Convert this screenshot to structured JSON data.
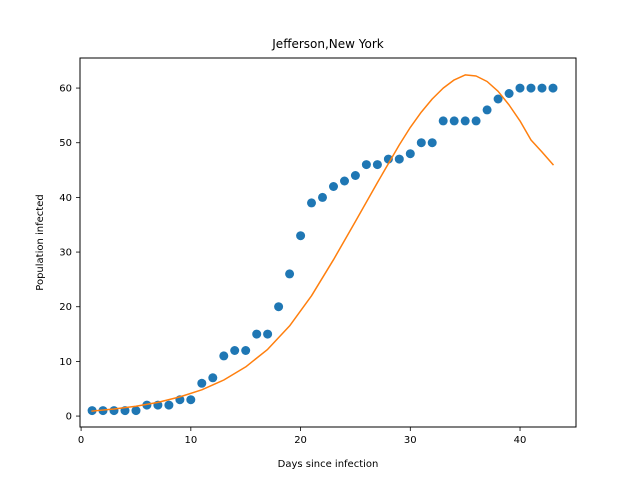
{
  "chart_data": {
    "type": "scatter",
    "title": "Jefferson,New York",
    "xlabel": "Days since infection",
    "ylabel": "Population infected",
    "xlim": [
      -0.1,
      45.1
    ],
    "ylim": [
      -2,
      65.5
    ],
    "xticks": [
      0,
      10,
      20,
      30,
      40
    ],
    "yticks": [
      0,
      10,
      20,
      30,
      40,
      50,
      60
    ],
    "grid": false,
    "legend": "none",
    "series": [
      {
        "kind": "scatter",
        "color": "#1f77b4",
        "x": [
          1,
          2,
          3,
          4,
          5,
          6,
          7,
          8,
          9,
          10,
          11,
          12,
          13,
          14,
          15,
          16,
          17,
          18,
          19,
          20,
          21,
          22,
          23,
          24,
          25,
          26,
          27,
          28,
          29,
          30,
          31,
          32,
          33,
          34,
          35,
          36,
          37,
          38,
          39,
          40,
          41,
          42,
          43
        ],
        "y": [
          1,
          1,
          1,
          1,
          1,
          2,
          2,
          2,
          3,
          3,
          6,
          7,
          11,
          12,
          12,
          15,
          15,
          20,
          26,
          33,
          39,
          40,
          42,
          43,
          44,
          46,
          46,
          47,
          47,
          48,
          50,
          50,
          54,
          54,
          54,
          54,
          56,
          58,
          59,
          60,
          60,
          60,
          60
        ]
      },
      {
        "kind": "line",
        "color": "#ff7f0e",
        "x": [
          1,
          3,
          5,
          7,
          9,
          11,
          13,
          15,
          17,
          19,
          21,
          23,
          25,
          27,
          29,
          30,
          31,
          32,
          33,
          34,
          35,
          36,
          37,
          38,
          39,
          40,
          41,
          42,
          43
        ],
        "y": [
          0.9,
          1.3,
          1.8,
          2.5,
          3.5,
          4.8,
          6.6,
          9.0,
          12.2,
          16.5,
          22.0,
          28.6,
          35.6,
          42.7,
          49.6,
          52.8,
          55.6,
          58.0,
          60.0,
          61.5,
          62.4,
          62.2,
          61.2,
          59.4,
          56.9,
          54.0,
          50.5,
          48.3,
          46.0
        ]
      }
    ]
  }
}
